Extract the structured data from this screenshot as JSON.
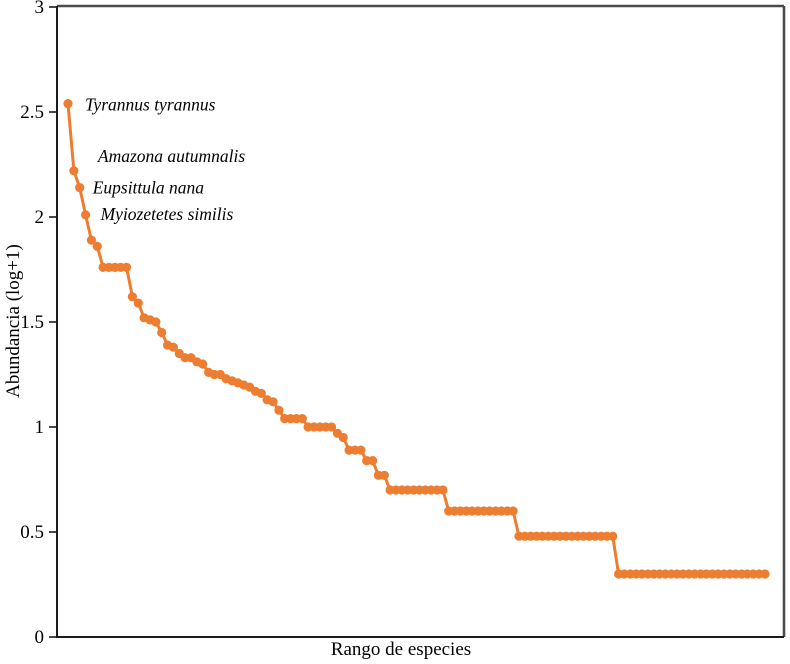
{
  "figure": {
    "background": "#ffffff",
    "frame_color": "#4a4a4a",
    "axis_color": "#1a1a1a",
    "text_color": "#000000"
  },
  "chart_data": {
    "type": "line",
    "title": "",
    "xlabel": "Rango de especies",
    "ylabel": "Abundancia (log+1)",
    "ylim": [
      0,
      3
    ],
    "xlim_ranks": [
      1,
      120
    ],
    "grid": false,
    "legend": false,
    "series_name": "Abundancia por rango de especie",
    "series_color": "#ED7D31",
    "marker": "circle",
    "y_ticks": [
      "3",
      "2.5",
      "2",
      "1.5",
      "1",
      "0.5",
      "0"
    ],
    "y_tick_values": [
      3,
      2.5,
      2,
      1.5,
      1,
      0.5,
      0
    ],
    "x_ticks": [],
    "values": [
      2.54,
      2.22,
      2.14,
      2.01,
      1.89,
      1.86,
      1.76,
      1.76,
      1.76,
      1.76,
      1.76,
      1.62,
      1.59,
      1.52,
      1.51,
      1.5,
      1.45,
      1.39,
      1.38,
      1.35,
      1.33,
      1.33,
      1.31,
      1.3,
      1.26,
      1.25,
      1.25,
      1.23,
      1.22,
      1.21,
      1.2,
      1.19,
      1.17,
      1.16,
      1.13,
      1.12,
      1.08,
      1.04,
      1.04,
      1.04,
      1.04,
      1.0,
      1.0,
      1.0,
      1.0,
      1.0,
      0.97,
      0.95,
      0.89,
      0.89,
      0.89,
      0.84,
      0.84,
      0.77,
      0.77,
      0.7,
      0.7,
      0.7,
      0.7,
      0.7,
      0.7,
      0.7,
      0.7,
      0.7,
      0.7,
      0.6,
      0.6,
      0.6,
      0.6,
      0.6,
      0.6,
      0.6,
      0.6,
      0.6,
      0.6,
      0.6,
      0.6,
      0.48,
      0.48,
      0.48,
      0.48,
      0.48,
      0.48,
      0.48,
      0.48,
      0.48,
      0.48,
      0.48,
      0.48,
      0.48,
      0.48,
      0.48,
      0.48,
      0.48,
      0.3,
      0.3,
      0.3,
      0.3,
      0.3,
      0.3,
      0.3,
      0.3,
      0.3,
      0.3,
      0.3,
      0.3,
      0.3,
      0.3,
      0.3,
      0.3,
      0.3,
      0.3,
      0.3,
      0.3,
      0.3,
      0.3,
      0.3,
      0.3,
      0.3,
      0.3
    ],
    "annotations": [
      {
        "text": "Tyrannus tyrannus",
        "point_index": 0
      },
      {
        "text": "Amazona autumnalis",
        "point_index": 1
      },
      {
        "text": "Eupsittula nana",
        "point_index": 2
      },
      {
        "text": "Myiozetetes similis",
        "point_index": 3
      }
    ]
  }
}
